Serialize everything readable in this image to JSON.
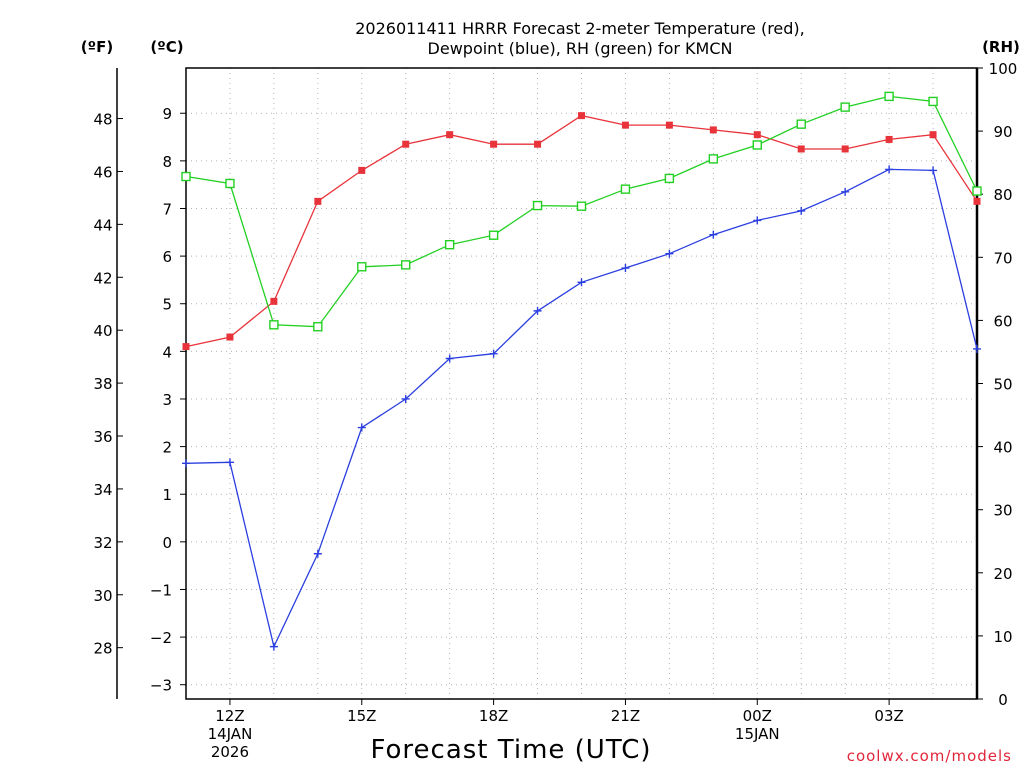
{
  "chart_data": {
    "type": "line",
    "title_line1": "2026011411 HRRR Forecast 2-meter Temperature (red),",
    "title_line2": "Dewpoint (blue), RH (green) for KMCN",
    "xlabel": "Forecast Time (UTC)",
    "credit": "coolwx.com/models",
    "units": {
      "fahrenheit": "(ºF)",
      "celsius": "(ºC)",
      "rh": "(RH)"
    },
    "x": [
      11,
      12,
      13,
      14,
      15,
      16,
      17,
      18,
      19,
      20,
      21,
      22,
      23,
      24,
      25,
      26,
      27,
      28,
      29
    ],
    "xlim": [
      11,
      29
    ],
    "x_ticks": [
      {
        "x": 12,
        "lines": [
          "12Z",
          "14JAN",
          "2026"
        ]
      },
      {
        "x": 15,
        "lines": [
          "15Z"
        ]
      },
      {
        "x": 18,
        "lines": [
          "18Z"
        ]
      },
      {
        "x": 21,
        "lines": [
          "21Z"
        ]
      },
      {
        "x": 24,
        "lines": [
          "00Z",
          "15JAN"
        ]
      },
      {
        "x": 27,
        "lines": [
          "03Z"
        ]
      }
    ],
    "ylim_c": [
      -3.3,
      9.95
    ],
    "ylim_f_ticks": [
      "28",
      "30",
      "32",
      "34",
      "36",
      "38",
      "40",
      "42",
      "44",
      "46",
      "48"
    ],
    "y_c_ticks": [
      "-3",
      "-2",
      "-1",
      "0",
      "1",
      "2",
      "3",
      "4",
      "5",
      "6",
      "7",
      "8",
      "9"
    ],
    "ylim_rh": [
      0,
      100
    ],
    "y_rh_ticks": [
      "0",
      "10",
      "20",
      "30",
      "40",
      "50",
      "60",
      "70",
      "80",
      "90",
      "100"
    ],
    "grid": true,
    "series": [
      {
        "name": "Temperature",
        "unit": "C",
        "color": "#e8333a",
        "marker": "filled-square",
        "values": [
          4.1,
          4.3,
          5.05,
          7.15,
          7.8,
          8.35,
          8.55,
          8.35,
          8.35,
          8.95,
          8.75,
          8.75,
          8.65,
          8.55,
          8.25,
          8.25,
          8.45,
          8.55,
          7.15
        ]
      },
      {
        "name": "Dewpoint",
        "unit": "C",
        "color": "#2b3fe0",
        "marker": "plus",
        "values": [
          1.65,
          1.67,
          -2.2,
          -0.25,
          2.4,
          3.0,
          3.85,
          3.95,
          4.85,
          5.45,
          5.75,
          6.05,
          6.45,
          6.75,
          6.95,
          7.35,
          7.82,
          7.8,
          4.05
        ]
      },
      {
        "name": "RH",
        "unit": "%",
        "color": "#22d022",
        "marker": "open-square",
        "values": [
          82.8,
          81.7,
          59.3,
          59.0,
          68.5,
          68.8,
          72.0,
          73.5,
          78.2,
          78.1,
          80.8,
          82.5,
          85.6,
          87.8,
          91.1,
          93.8,
          95.5,
          94.7,
          80.5
        ]
      }
    ]
  }
}
